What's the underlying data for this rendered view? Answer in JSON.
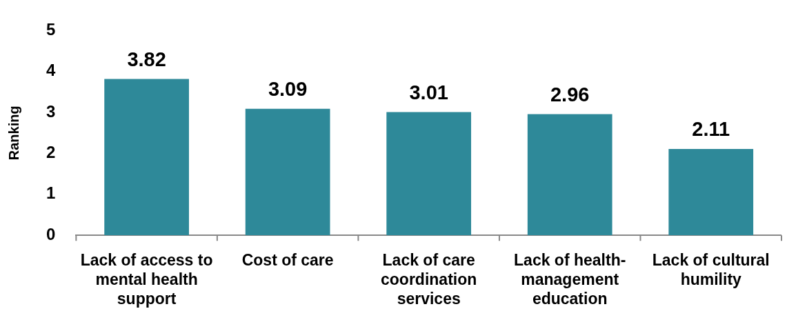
{
  "chart_data": {
    "type": "bar",
    "ylabel": "Ranking",
    "categories": [
      "Lack of access to mental health support",
      "Cost of care",
      "Lack of care coordination services",
      "Lack of health-management education",
      "Lack of cultural humility"
    ],
    "values": [
      3.82,
      3.09,
      3.01,
      2.96,
      2.11
    ],
    "color": "#2e8999",
    "ylim": [
      0,
      5
    ],
    "yticks": [
      0,
      1,
      2,
      3,
      4,
      5
    ],
    "grid": false,
    "legend": false,
    "data_labels": true
  }
}
